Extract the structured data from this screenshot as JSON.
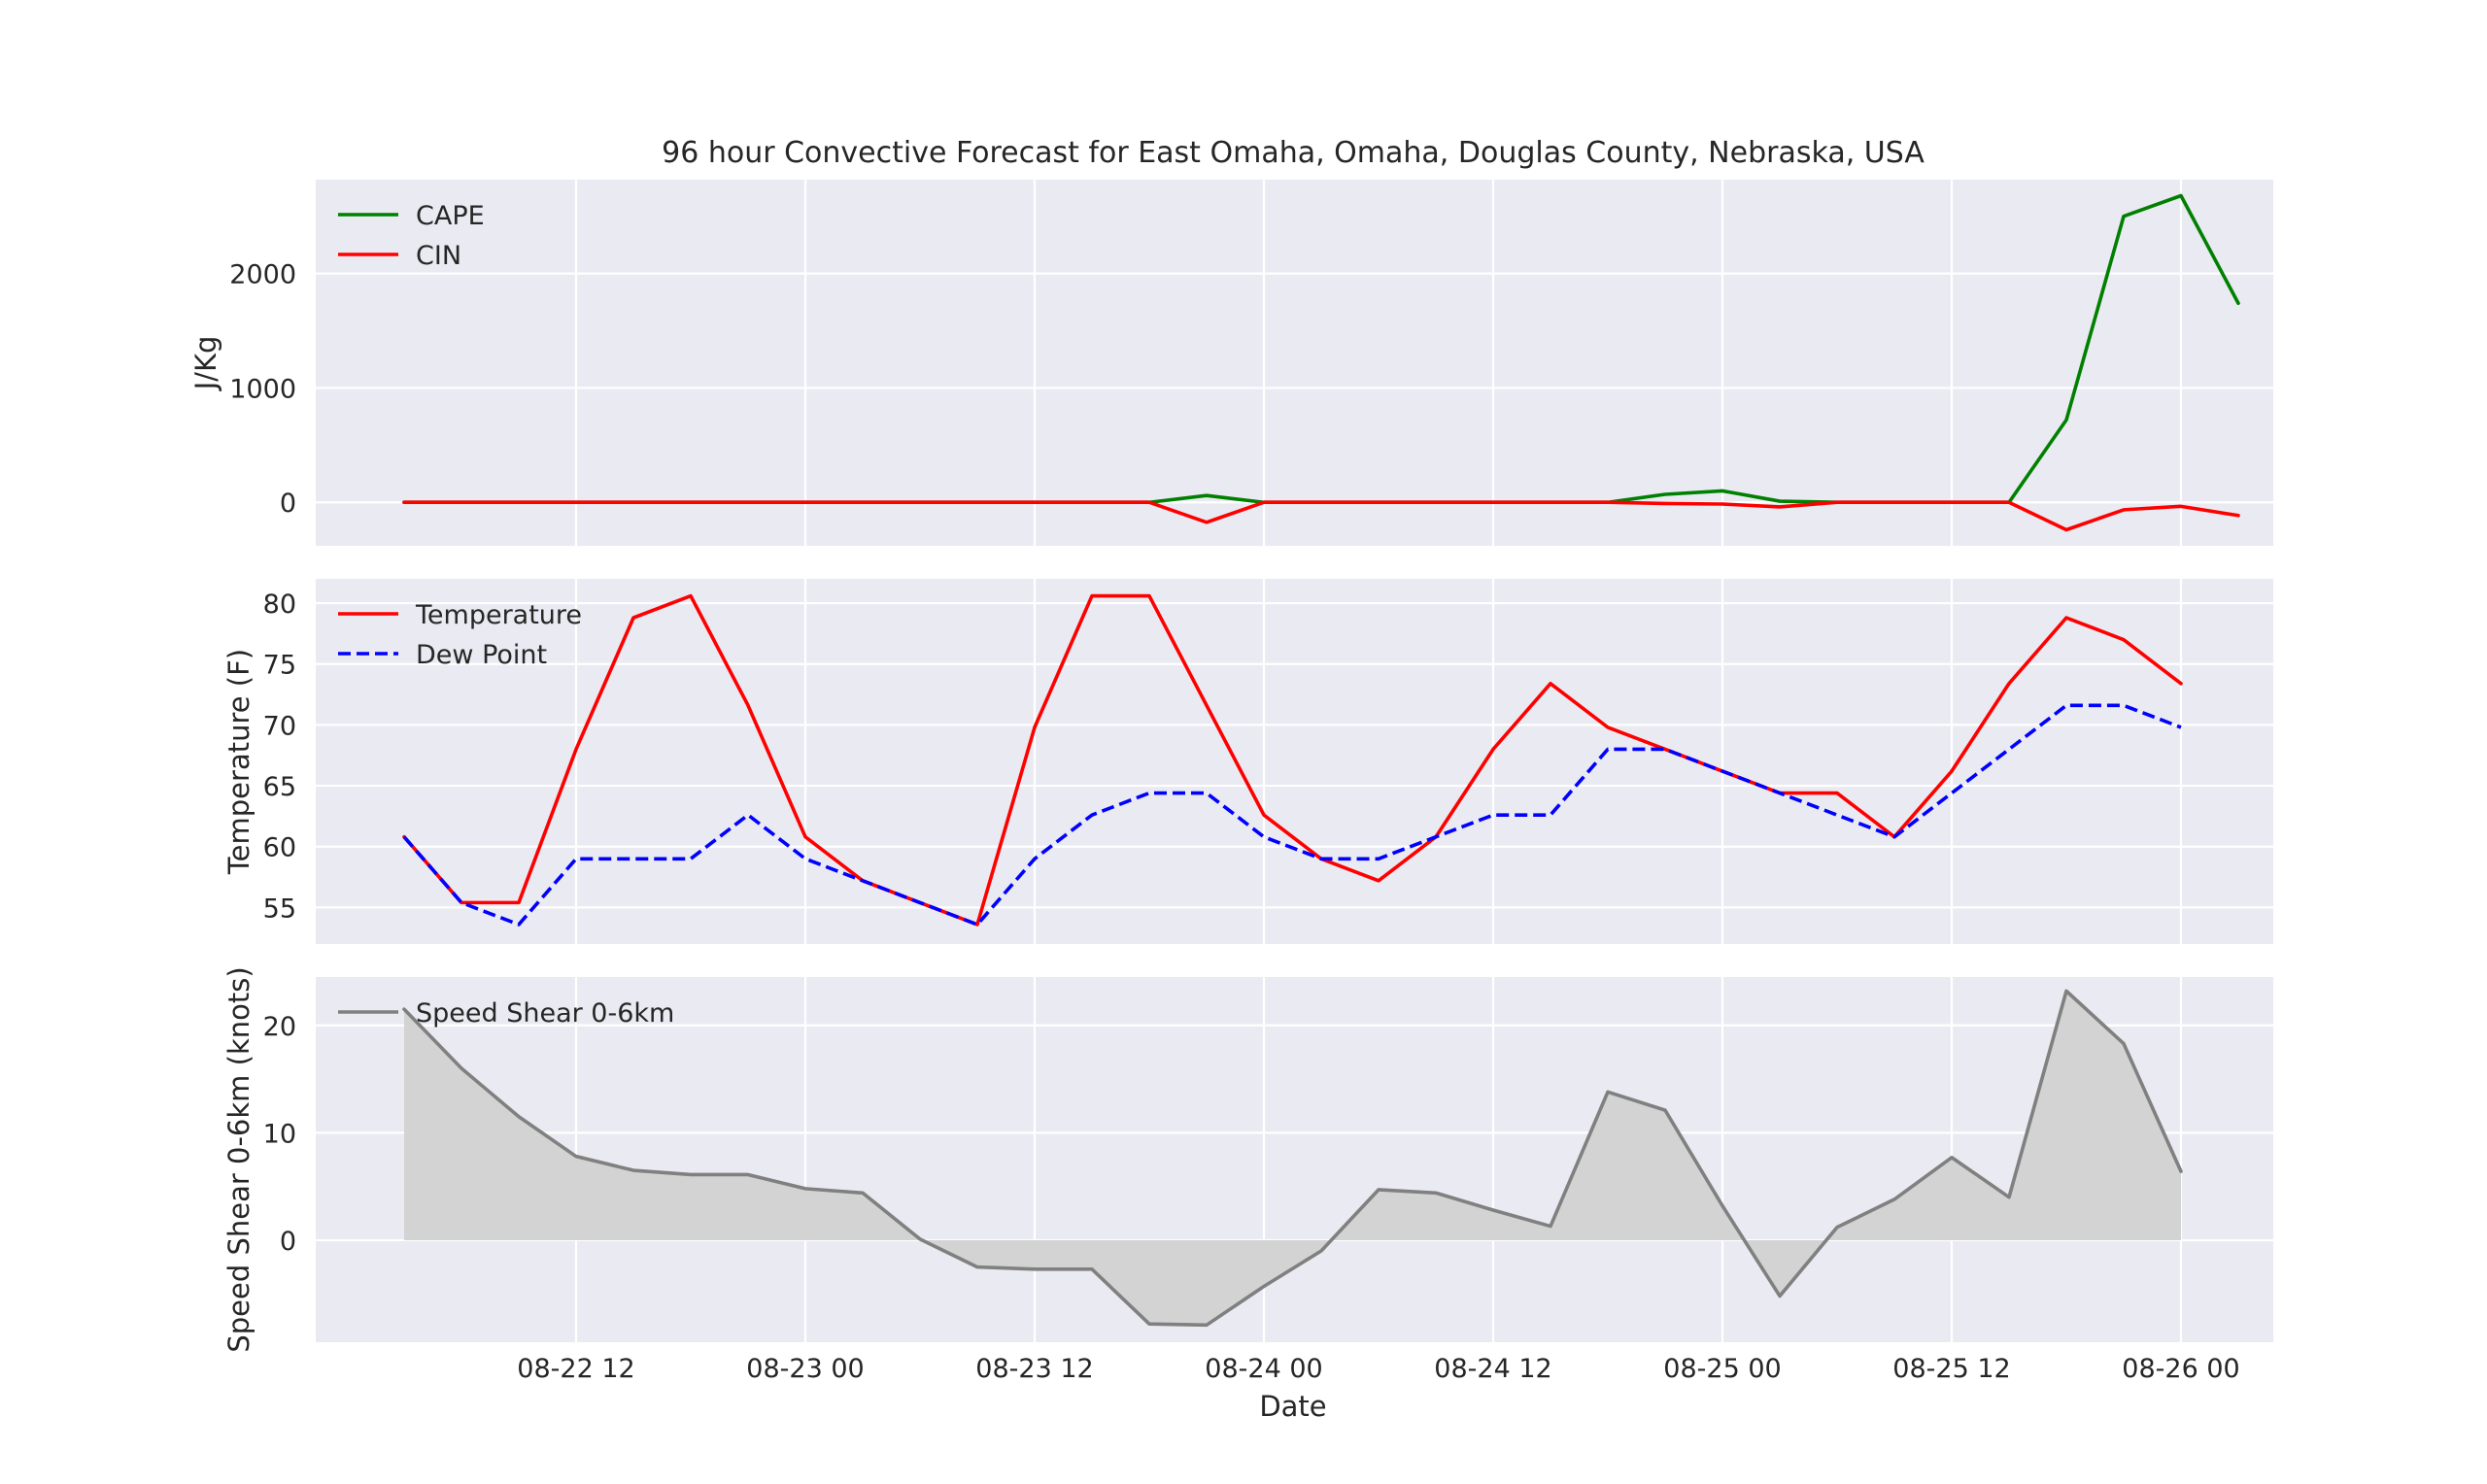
{
  "title": "96 hour Convective Forecast for  East Omaha, Omaha, Douglas County, Nebraska, USA",
  "chart_data": [
    {
      "type": "line",
      "ylabel": "J/Kg",
      "ylim": [
        -380,
        2820
      ],
      "yticks": [
        0,
        1000,
        2000
      ],
      "legend_position": "top-left",
      "grid": true,
      "series": [
        {
          "name": "CAPE",
          "color": "#008000",
          "style": "solid",
          "values": [
            0,
            0,
            0,
            0,
            0,
            0,
            0,
            0,
            0,
            0,
            0,
            0,
            0,
            0,
            60,
            0,
            0,
            0,
            0,
            0,
            0,
            0,
            70,
            100,
            10,
            0,
            0,
            0,
            0,
            720,
            2500,
            2680,
            1740
          ]
        },
        {
          "name": "CIN",
          "color": "#ff0000",
          "style": "solid",
          "values": [
            0,
            0,
            0,
            0,
            0,
            0,
            0,
            0,
            0,
            0,
            0,
            0,
            0,
            0,
            -175,
            0,
            0,
            0,
            0,
            0,
            0,
            0,
            -10,
            -15,
            -40,
            0,
            0,
            0,
            0,
            -240,
            -65,
            -35,
            -115
          ]
        }
      ]
    },
    {
      "type": "line",
      "ylabel": "Temperature (F)",
      "ylim": [
        52,
        82
      ],
      "yticks": [
        55,
        60,
        65,
        70,
        75,
        80
      ],
      "legend_position": "top-left",
      "grid": true,
      "series": [
        {
          "name": "Temperature",
          "color": "#ff0000",
          "style": "solid",
          "values": [
            60.8,
            55.4,
            55.4,
            68,
            78.8,
            80.6,
            71.6,
            60.8,
            57.2,
            55.4,
            53.6,
            69.8,
            80.6,
            80.6,
            71.6,
            62.6,
            59,
            57.2,
            60.8,
            68,
            73.4,
            69.8,
            68,
            66.2,
            64.4,
            64.4,
            60.8,
            66.2,
            73.4,
            78.8,
            77,
            73.4
          ]
        },
        {
          "name": "Dew Point",
          "color": "#0000ff",
          "style": "dashed",
          "values": [
            60.8,
            55.4,
            53.6,
            59,
            59,
            59,
            62.6,
            59,
            57.2,
            55.4,
            53.6,
            59,
            62.6,
            64.4,
            64.4,
            60.8,
            59,
            59,
            60.8,
            62.6,
            62.6,
            68,
            68,
            66.2,
            64.4,
            62.6,
            60.8,
            64.4,
            68,
            71.6,
            71.6,
            69.8
          ]
        }
      ]
    },
    {
      "type": "area",
      "ylabel": "Speed Shear 0-6km (knots)",
      "xlabel": "Date",
      "ylim": [
        -9.5,
        24.5
      ],
      "yticks": [
        0,
        10,
        20
      ],
      "legend_position": "top-left",
      "grid": true,
      "x_start": "08-22 03",
      "x_step_hours": 3,
      "xticks": [
        "08-22 12",
        "08-23 00",
        "08-23 12",
        "08-24 00",
        "08-24 12",
        "08-25 00",
        "08-25 12",
        "08-26 00"
      ],
      "series": [
        {
          "name": "Speed Shear 0-6km",
          "color": "#808080",
          "fill": "#d3d3d3",
          "style": "solid",
          "values": [
            21.5,
            16,
            11.5,
            7.8,
            6.5,
            6.1,
            6.1,
            4.8,
            4.4,
            0.1,
            -2.5,
            -2.7,
            -2.7,
            -7.8,
            -7.9,
            -4.3,
            -1,
            4.7,
            4.4,
            2.8,
            1.3,
            13.8,
            12.1,
            3.2,
            -5.2,
            1.2,
            3.8,
            7.7,
            4,
            23.2,
            18.3,
            6.4
          ]
        }
      ]
    }
  ]
}
